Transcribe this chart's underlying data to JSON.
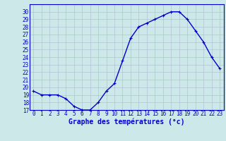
{
  "hours": [
    0,
    1,
    2,
    3,
    4,
    5,
    6,
    7,
    8,
    9,
    10,
    11,
    12,
    13,
    14,
    15,
    16,
    17,
    18,
    19,
    20,
    21,
    22,
    23
  ],
  "temperatures": [
    19.5,
    19.0,
    19.0,
    19.0,
    18.5,
    17.5,
    17.0,
    17.0,
    18.0,
    19.5,
    20.5,
    23.5,
    26.5,
    28.0,
    28.5,
    29.0,
    29.5,
    30.0,
    30.0,
    29.0,
    27.5,
    26.0,
    24.0,
    22.5
  ],
  "line_color": "#0000cc",
  "marker": "+",
  "marker_size": 3,
  "marker_color": "#0000cc",
  "xlabel": "Graphe des températures (°c)",
  "xlabel_fontsize": 7,
  "ylim": [
    17,
    31
  ],
  "yticks": [
    17,
    18,
    19,
    20,
    21,
    22,
    23,
    24,
    25,
    26,
    27,
    28,
    29,
    30
  ],
  "xticks": [
    0,
    1,
    2,
    3,
    4,
    5,
    6,
    7,
    8,
    9,
    10,
    11,
    12,
    13,
    14,
    15,
    16,
    17,
    18,
    19,
    20,
    21,
    22,
    23
  ],
  "background_color": "#cce8e8",
  "grid_color": "#aabbcc",
  "tick_fontsize": 5.5,
  "line_width": 1.0
}
